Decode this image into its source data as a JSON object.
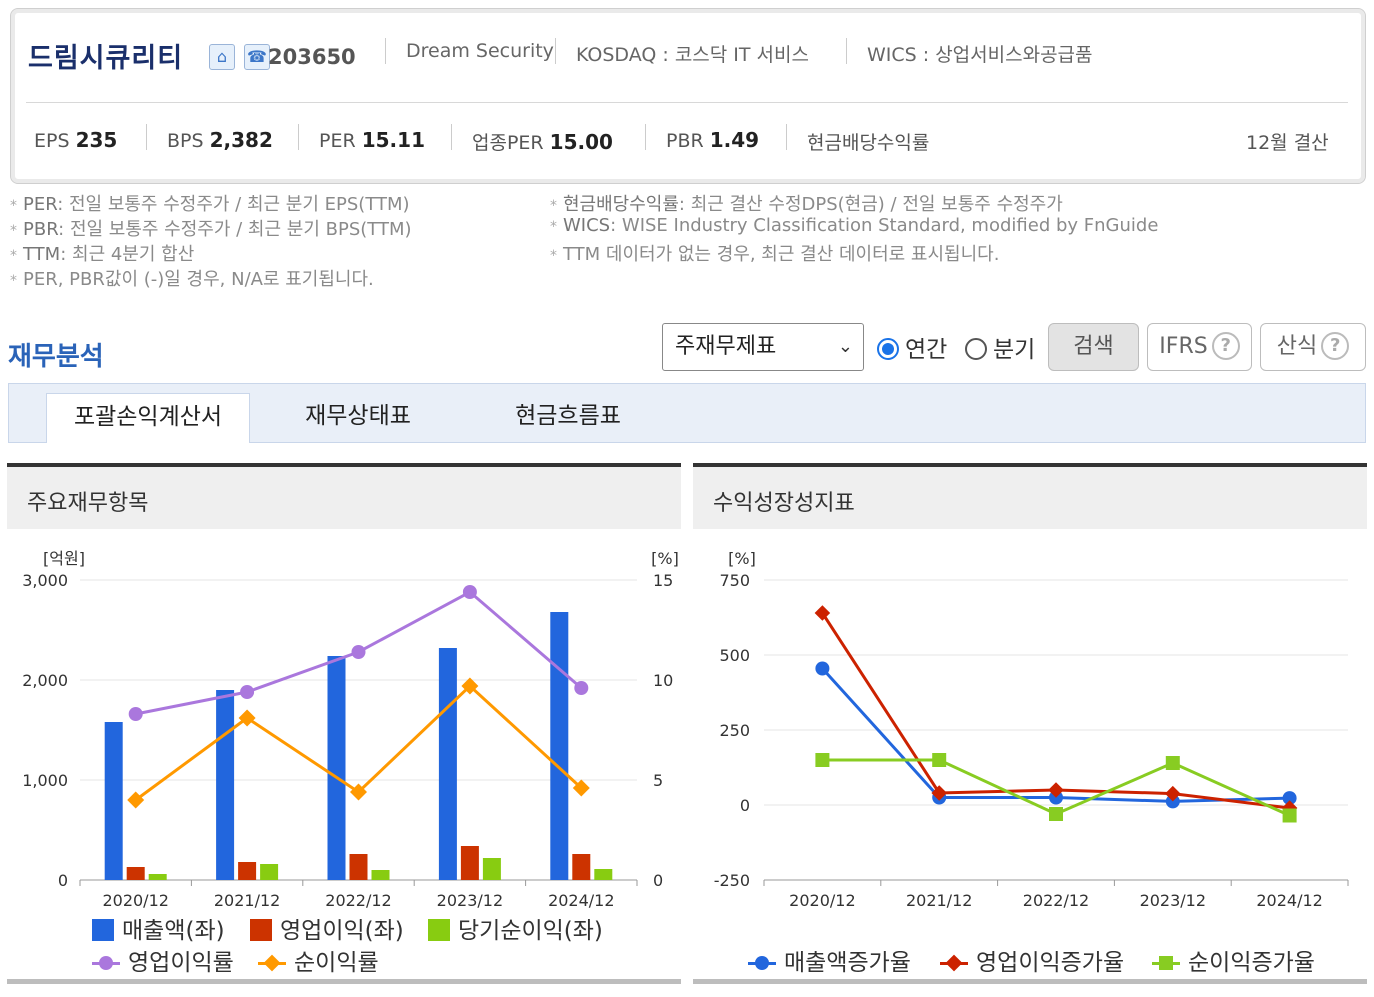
{
  "header": {
    "company_name": "드림시큐리티",
    "home_icon": "home-icon",
    "phone_icon": "phone-icon",
    "stock_code": "203650",
    "english_name": "Dream Security",
    "market": "KOSDAQ : 코스닥 IT 서비스",
    "wics": "WICS : 상업서비스와공급품",
    "metrics": {
      "eps_label": "EPS",
      "eps_value": "235",
      "bps_label": "BPS",
      "bps_value": "2,382",
      "per_label": "PER",
      "per_value": "15.11",
      "industry_per_label": "업종PER",
      "industry_per_value": "15.00",
      "pbr_label": "PBR",
      "pbr_value": "1.49",
      "dividend_label": "현금배당수익률",
      "fiscal": "12월 결산"
    }
  },
  "notes": {
    "left": [
      {
        "key": "PER",
        "text": ": 전일 보통주 수정주가 / 최근 분기 EPS(TTM)"
      },
      {
        "key": "PBR",
        "text": ": 전일 보통주 수정주가 / 최근 분기 BPS(TTM)"
      },
      {
        "key": "TTM",
        "text": ": 최근 4분기 합산"
      },
      {
        "key": "",
        "text": "PER, PBR값이 (-)일 경우, N/A로 표기됩니다."
      }
    ],
    "right": [
      {
        "key": "현금배당수익률",
        "text": ": 최근 결산 수정DPS(현금) / 전일 보통주 수정주가"
      },
      {
        "key": "WICS",
        "text": ": WISE Industry Classification Standard, modified by FnGuide"
      },
      {
        "key": "",
        "text": "TTM 데이터가 없는 경우, 최근 결산 데이터로 표시됩니다."
      }
    ]
  },
  "section": {
    "title": "재무분석",
    "select_value": "주재무제표",
    "radio_annual": "연간",
    "radio_quarter": "분기",
    "search_button": "검색",
    "ifrs_button": "IFRS",
    "formula_button": "산식"
  },
  "tabs": [
    "포괄손익계산서",
    "재무상태표",
    "현금흐름표"
  ],
  "panels": {
    "left_title": "주요재무항목",
    "right_title": "수익성장성지표"
  },
  "colors": {
    "revenue": "#2266dd",
    "op_income": "#cc3300",
    "net_income": "#88cc11",
    "op_margin": "#aa77dd",
    "net_margin": "#ff9900",
    "rev_growth": "#2266dd",
    "op_growth": "#cc2200",
    "net_growth": "#88cc22"
  },
  "chart_data": [
    {
      "type": "bar",
      "categories": [
        "2020/12",
        "2021/12",
        "2022/12",
        "2023/12",
        "2024/12"
      ],
      "ylabel": "[억원]",
      "ylabel_right": "[%]",
      "ylim": [
        0,
        3000
      ],
      "ylim_right": [
        0,
        15
      ],
      "yticks": [
        "3,000",
        "2,000",
        "1,000",
        "0"
      ],
      "yticks_right": [
        "15",
        "10",
        "5",
        "0"
      ],
      "series": [
        {
          "name": "매출액(좌)",
          "kind": "bar",
          "values": [
            1580,
            1900,
            2240,
            2320,
            2680
          ]
        },
        {
          "name": "영업이익(좌)",
          "kind": "bar",
          "values": [
            130,
            180,
            260,
            340,
            260
          ]
        },
        {
          "name": "당기순이익(좌)",
          "kind": "bar",
          "values": [
            60,
            160,
            100,
            220,
            110
          ]
        },
        {
          "name": "영업이익률",
          "kind": "line",
          "axis": "right",
          "values": [
            8.3,
            9.4,
            11.4,
            14.4,
            9.6
          ]
        },
        {
          "name": "순이익률",
          "kind": "line",
          "axis": "right",
          "values": [
            4.0,
            8.1,
            4.4,
            9.7,
            4.6
          ]
        }
      ]
    },
    {
      "type": "line",
      "categories": [
        "2020/12",
        "2021/12",
        "2022/12",
        "2023/12",
        "2024/12"
      ],
      "ylabel": "[%]",
      "ylim": [
        -250,
        750
      ],
      "yticks": [
        "750",
        "500",
        "250",
        "0",
        "-250"
      ],
      "series": [
        {
          "name": "매출액증가율",
          "values": [
            455,
            25,
            25,
            12,
            23
          ]
        },
        {
          "name": "영업이익증가율",
          "values": [
            640,
            40,
            50,
            38,
            -10
          ]
        },
        {
          "name": "순이익증가율",
          "values": [
            150,
            150,
            -30,
            140,
            -35
          ]
        }
      ]
    }
  ]
}
